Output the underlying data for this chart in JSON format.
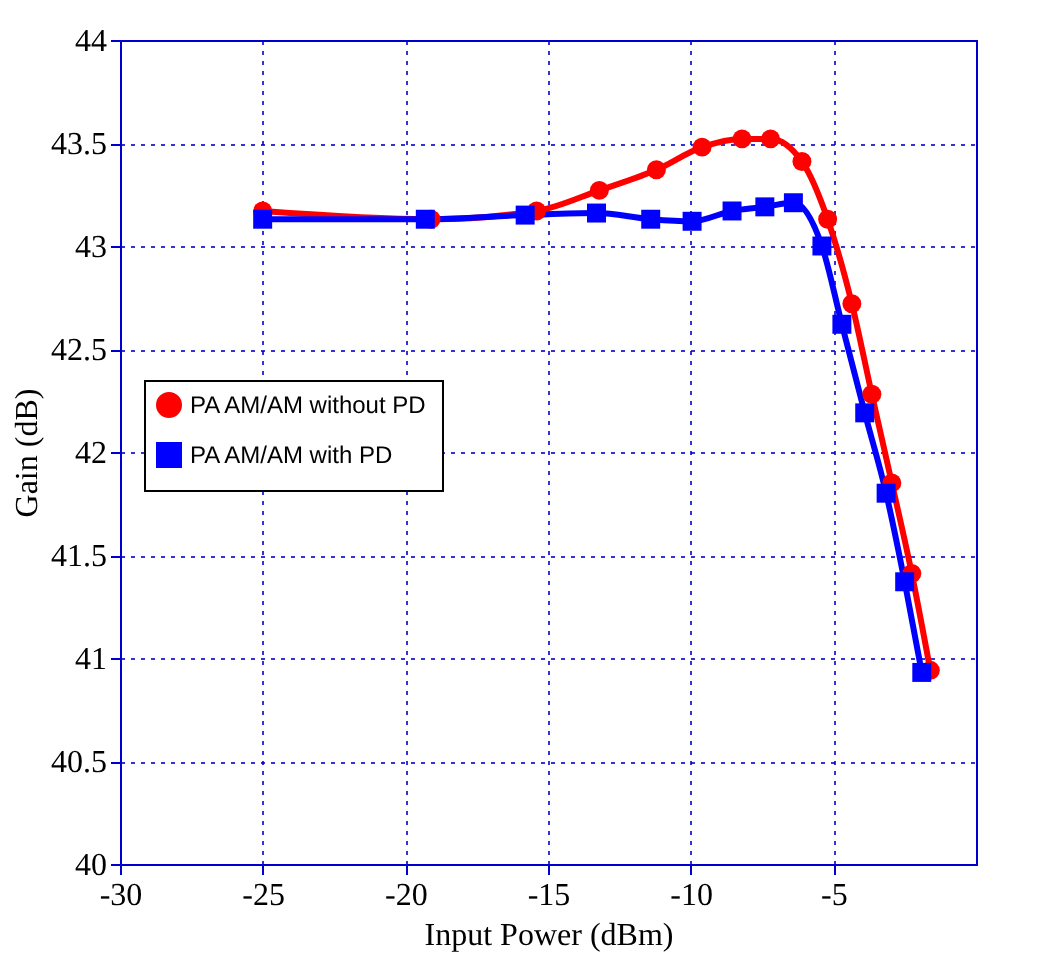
{
  "chart_data": {
    "type": "line",
    "xlabel": "Input Power (dBm)",
    "ylabel": "Gain  (dB)",
    "xlim": [
      -30,
      0
    ],
    "xticks": [
      -30,
      -25,
      -20,
      -15,
      -10,
      -5
    ],
    "ylim": [
      40,
      44
    ],
    "yticks": [
      40,
      40.5,
      41,
      41.5,
      42,
      42.5,
      43,
      43.5,
      44
    ],
    "grid": true,
    "legend": "left",
    "line_style": "solid",
    "series": [
      {
        "name": "PA AM/AM without PD",
        "color": "#ff0000",
        "marker": "circle",
        "x": [
          -25.0,
          -19.1,
          -15.4,
          -13.2,
          -11.2,
          -9.6,
          -8.2,
          -7.2,
          -6.1,
          -5.2,
          -4.35,
          -3.65,
          -2.95,
          -2.25,
          -1.6
        ],
        "values": [
          43.17,
          43.13,
          43.17,
          43.27,
          43.37,
          43.48,
          43.52,
          43.52,
          43.41,
          43.13,
          42.72,
          42.28,
          41.85,
          41.41,
          40.94
        ]
      },
      {
        "name": "PA AM/AM with PD",
        "color": "#0000ff",
        "marker": "square",
        "x": [
          -25.0,
          -19.3,
          -15.8,
          -13.3,
          -11.4,
          -9.95,
          -8.55,
          -7.4,
          -6.4,
          -5.4,
          -4.7,
          -3.9,
          -3.15,
          -2.5,
          -1.9
        ],
        "values": [
          43.13,
          43.13,
          43.15,
          43.16,
          43.13,
          43.12,
          43.17,
          43.19,
          43.21,
          43.0,
          42.62,
          42.19,
          41.8,
          41.37,
          40.93
        ]
      }
    ]
  }
}
